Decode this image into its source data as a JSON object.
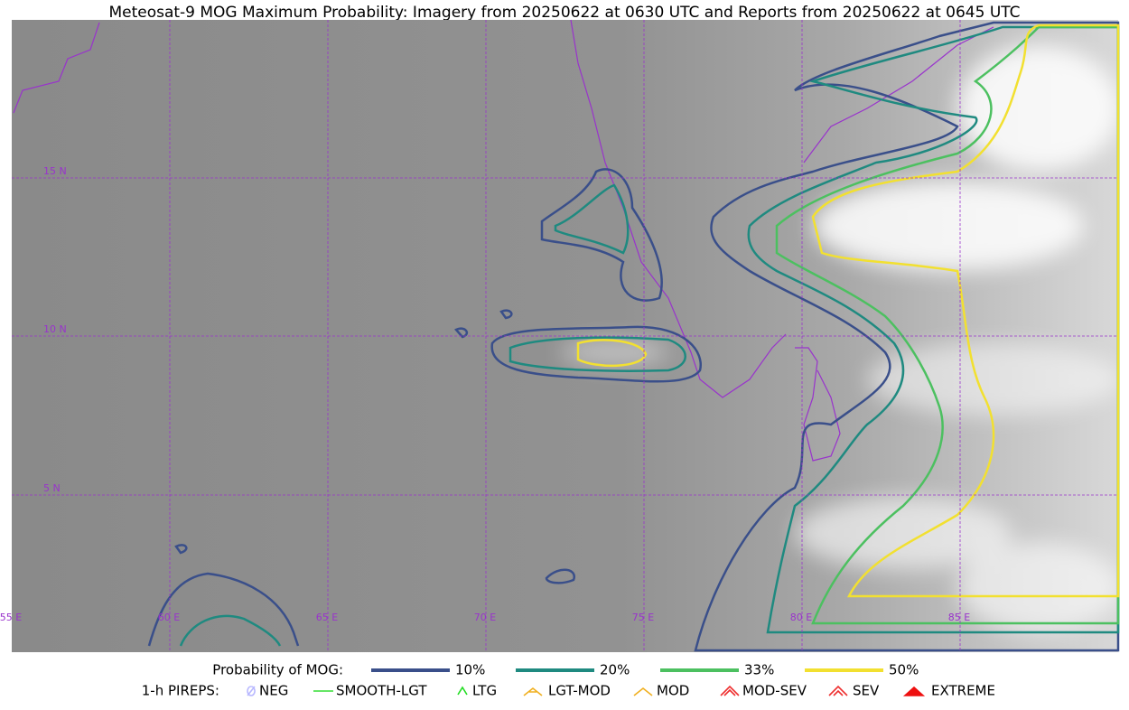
{
  "title": "Meteosat-9 MOG Maximum Probability: Imagery from 20250622 at 0630 UTC and Reports from 20250622 at 0645 UTC",
  "map": {
    "lat_labels": [
      "15 N",
      "10 N",
      "5 N"
    ],
    "lon_labels": [
      "55 E",
      "60 E",
      "65 E",
      "70 E",
      "75 E",
      "80 E",
      "85 E"
    ]
  },
  "legend": {
    "probability": {
      "label": "Probability of MOG:",
      "items": [
        {
          "label": "10%",
          "color": "#3a4f8a"
        },
        {
          "label": "20%",
          "color": "#1f8a80"
        },
        {
          "label": "33%",
          "color": "#4cc060"
        },
        {
          "label": "50%",
          "color": "#f2e030"
        }
      ]
    },
    "pireps": {
      "label": "1-h PIREPS:",
      "items": [
        {
          "label": "NEG",
          "color": "#b8b8ff"
        },
        {
          "label": "SMOOTH-LGT",
          "color": "#33dd33"
        },
        {
          "label": "LTG",
          "color": "#22dd22"
        },
        {
          "label": "LGT-MOD",
          "color": "#f0b020"
        },
        {
          "label": "MOD",
          "color": "#f0b020"
        },
        {
          "label": "MOD-SEV",
          "color": "#ee3030"
        },
        {
          "label": "SEV",
          "color": "#ee3030"
        },
        {
          "label": "EXTREME",
          "color": "#ee1010"
        }
      ]
    }
  }
}
